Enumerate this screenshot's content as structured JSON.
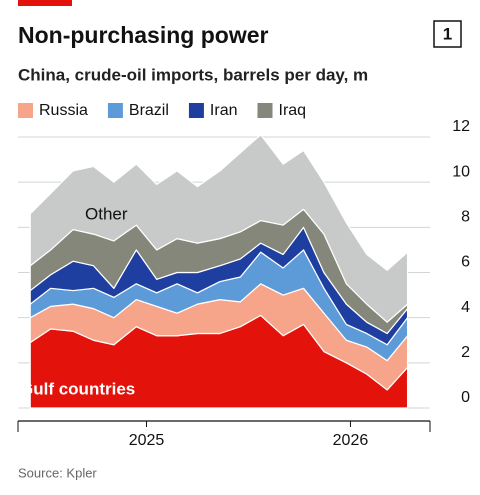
{
  "chart_data": {
    "type": "stacked_area",
    "title": "Non-purchasing power",
    "subtitle": "China, crude-oil imports, barrels per day, m",
    "badge": "1",
    "source": "Source: Kpler",
    "x": [
      2024.93,
      2025.03,
      2025.14,
      2025.24,
      2025.34,
      2025.45,
      2025.55,
      2025.65,
      2025.75,
      2025.86,
      2025.96,
      2026.06,
      2026.17,
      2026.27,
      2026.37,
      2026.48,
      2026.58,
      2026.68,
      2026.78
    ],
    "series": [
      {
        "name": "Gulf countries",
        "color": "#e3120b",
        "in_legend": false,
        "values": [
          2.9,
          3.5,
          3.4,
          3.0,
          2.8,
          3.6,
          3.2,
          3.2,
          3.3,
          3.3,
          3.6,
          4.1,
          3.2,
          3.7,
          2.5,
          2.0,
          1.5,
          0.8,
          1.8
        ]
      },
      {
        "name": "Russia",
        "color": "#f6a58b",
        "in_legend": true,
        "values": [
          1.1,
          1.0,
          1.2,
          1.4,
          1.2,
          1.2,
          1.3,
          1.0,
          1.3,
          1.5,
          1.1,
          1.4,
          1.8,
          1.6,
          1.7,
          1.0,
          1.2,
          1.3,
          1.4
        ]
      },
      {
        "name": "Brazil",
        "color": "#5d9ad8",
        "in_legend": true,
        "values": [
          0.6,
          0.8,
          0.6,
          0.9,
          0.9,
          0.7,
          0.6,
          1.3,
          0.5,
          0.8,
          1.1,
          1.4,
          1.2,
          1.7,
          1.1,
          0.7,
          0.6,
          0.7,
          0.8
        ]
      },
      {
        "name": "Iran",
        "color": "#1f3fa0",
        "in_legend": true,
        "values": [
          0.6,
          0.6,
          1.3,
          1.0,
          0.4,
          1.5,
          0.6,
          0.5,
          0.9,
          0.7,
          0.8,
          0.4,
          0.6,
          1.0,
          0.7,
          0.9,
          0.5,
          0.5,
          0.4
        ]
      },
      {
        "name": "Iraq",
        "color": "#85877b",
        "in_legend": true,
        "values": [
          1.1,
          1.1,
          1.4,
          1.4,
          2.1,
          1.1,
          1.3,
          1.5,
          1.3,
          1.2,
          1.2,
          1.0,
          1.3,
          0.8,
          1.7,
          0.9,
          0.8,
          0.5,
          0.2
        ]
      },
      {
        "name": "Other",
        "color": "#c8caca",
        "in_legend": false,
        "values": [
          2.3,
          2.5,
          2.6,
          3.0,
          2.6,
          2.7,
          2.9,
          3.0,
          2.5,
          3.0,
          3.5,
          3.8,
          2.7,
          2.6,
          2.3,
          2.7,
          2.2,
          2.3,
          2.3
        ]
      }
    ],
    "xlim": [
      2024.87,
      2026.89
    ],
    "xticks": [
      {
        "value": 2025.5,
        "label": "2025"
      },
      {
        "value": 2026.5,
        "label": "2026"
      }
    ],
    "ylim": [
      0,
      12
    ],
    "yticks": [
      0,
      2,
      4,
      6,
      8,
      10,
      12
    ],
    "grid": true
  }
}
